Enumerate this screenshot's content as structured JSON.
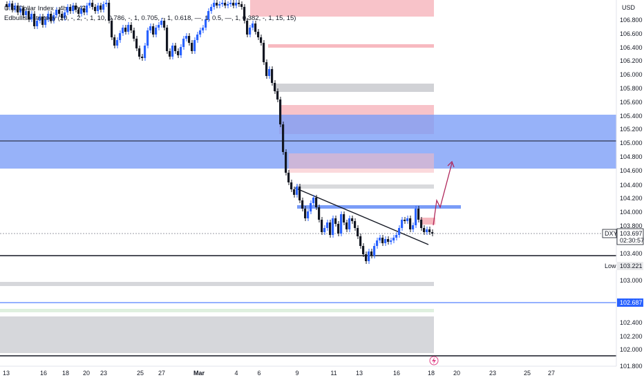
{
  "header": {
    "symbol_line": "U.S. Dollar Index · 4h · TVC",
    "indicator_line": "Edbullish strategy (20, -, 2, -, 1, 10, 0.786, -, 1, 0.705, -, 1, 0.618, —, 1, 0.5, —, 1, 0.382, -, 1, 15, 15)"
  },
  "axis": {
    "currency": "USD"
  },
  "tags": {
    "symbol": "DXY",
    "price": "103.697",
    "countdown": "02:30:57",
    "low_label": "Low",
    "low_value": "103.221",
    "level_value": "102.687"
  },
  "colors": {
    "bull": "#2962ff",
    "bear": "#131722",
    "supply_zone": "#f7b9c0",
    "blue_zone": "#7a9cf7",
    "grey_zone": "#c9cad0",
    "projection_arrow": "#b0285b"
  },
  "chart_data": {
    "type": "candlestick",
    "timeframe": "4h",
    "y_axis_label": "USD",
    "ylim": [
      101.9,
      107.1
    ],
    "y_ticks": [
      "106.800",
      "106.600",
      "106.400",
      "106.200",
      "106.000",
      "105.800",
      "105.600",
      "105.400",
      "105.200",
      "105.000",
      "104.800",
      "104.600",
      "104.400",
      "104.200",
      "104.000",
      "103.800",
      "103.400",
      "103.000",
      "102.400",
      "102.200",
      "102.000",
      "101.800"
    ],
    "x_ticks": [
      "13",
      "16",
      "18",
      "20",
      "23",
      "25",
      "27",
      "Mar",
      "4",
      "6",
      "9",
      "11",
      "13",
      "16",
      "18",
      "20",
      "23",
      "25",
      "27"
    ],
    "last_price": 103.697,
    "session_low": 103.221,
    "horizontal_level": 102.687,
    "ohlc_sample": [
      {
        "o": 106.92,
        "h": 107.0,
        "l": 106.8,
        "c": 106.85
      },
      {
        "o": 106.85,
        "h": 106.98,
        "l": 106.7,
        "c": 106.75
      },
      {
        "o": 106.75,
        "h": 106.95,
        "l": 106.65,
        "c": 106.9
      },
      {
        "o": 106.9,
        "h": 107.0,
        "l": 106.75,
        "c": 106.8
      },
      {
        "o": 106.8,
        "h": 106.95,
        "l": 106.68,
        "c": 106.92
      },
      {
        "o": 106.92,
        "h": 107.0,
        "l": 106.8,
        "c": 106.88
      },
      {
        "o": 106.88,
        "h": 106.95,
        "l": 106.62,
        "c": 106.68
      },
      {
        "o": 106.68,
        "h": 106.85,
        "l": 106.6,
        "c": 106.8
      },
      {
        "o": 106.8,
        "h": 106.95,
        "l": 106.7,
        "c": 106.9
      },
      {
        "o": 106.9,
        "h": 107.0,
        "l": 106.82,
        "c": 106.95
      }
    ]
  }
}
